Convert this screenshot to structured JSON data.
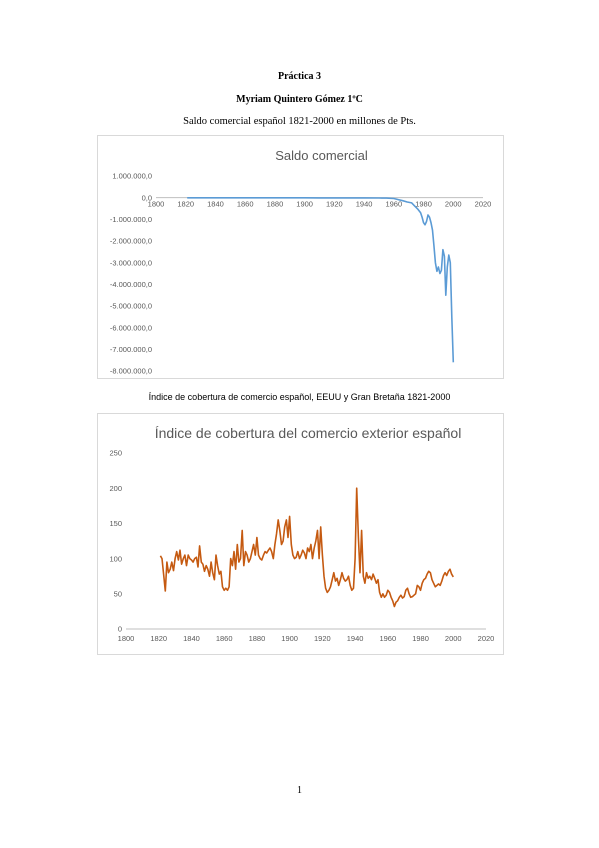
{
  "document": {
    "heading": "Práctica 3",
    "author": "Myriam Quintero Gómez 1ºC",
    "subtitle": "Saldo comercial español 1821-2000 en millones de Pts.",
    "caption2": "Índice de cobertura de comercio español, EEUU y Gran Bretaña 1821-2000",
    "page_number": "1"
  },
  "colors": {
    "saldo_line": "#5b9bd5",
    "cobertura_line": "#c55a11",
    "axis": "#bfbfbf",
    "text": "#595959"
  },
  "chart_data": [
    {
      "type": "line",
      "title": "Saldo comercial",
      "xlabel": "",
      "ylabel": "",
      "xlim": [
        1800,
        2020
      ],
      "ylim": [
        -8000000,
        1000000
      ],
      "x_ticks": [
        1800,
        1820,
        1840,
        1860,
        1880,
        1900,
        1920,
        1940,
        1960,
        1980,
        2000,
        2020
      ],
      "x_tick_labels": [
        "1800",
        "1820",
        "1840",
        "1860",
        "1880",
        "1900",
        "1920",
        "1940",
        "1960",
        "1980",
        "2000",
        "2020"
      ],
      "y_ticks": [
        1000000,
        0,
        -1000000,
        -2000000,
        -3000000,
        -4000000,
        -5000000,
        -6000000,
        -7000000,
        -8000000
      ],
      "y_tick_labels": [
        "1.000.000,0",
        "0,0",
        "-1.000.000,0",
        "-2.000.000,0",
        "-3.000.000,0",
        "-4.000.000,0",
        "-5.000.000,0",
        "-6.000.000,0",
        "-7.000.000,0",
        "-8.000.000,0"
      ],
      "grid": false,
      "series": [
        {
          "x": [
            1821,
            1830,
            1840,
            1850,
            1860,
            1870,
            1880,
            1890,
            1900,
            1910,
            1920,
            1930,
            1940,
            1950,
            1955,
            1960,
            1963,
            1966,
            1969,
            1972,
            1974,
            1976,
            1978,
            1979,
            1980,
            1981,
            1982,
            1983,
            1984,
            1985,
            1986,
            1987,
            1988,
            1989,
            1990,
            1991,
            1992,
            1993,
            1994,
            1995,
            1996,
            1997,
            1998,
            1999,
            2000
          ],
          "values": [
            -5000,
            -5000,
            -5000,
            -5000,
            -6000,
            -6000,
            -7000,
            -8000,
            -8000,
            -9000,
            -10000,
            -12000,
            -10000,
            -15000,
            -20000,
            -40000,
            -90000,
            -140000,
            -200000,
            -240000,
            -380000,
            -520000,
            -700000,
            -900000,
            -1150000,
            -1250000,
            -1100000,
            -800000,
            -900000,
            -1150000,
            -1500000,
            -2200000,
            -3000000,
            -3400000,
            -3200000,
            -3500000,
            -3350000,
            -2400000,
            -2700000,
            -4500000,
            -3200000,
            -2650000,
            -3000000,
            -5500000,
            -7600000
          ]
        }
      ]
    },
    {
      "type": "line",
      "title": "Índice de cobertura del comercio exterior español",
      "xlabel": "",
      "ylabel": "",
      "xlim": [
        1800,
        2020
      ],
      "ylim": [
        0,
        250
      ],
      "x_ticks": [
        1800,
        1820,
        1840,
        1860,
        1880,
        1900,
        1920,
        1940,
        1960,
        1980,
        2000,
        2020
      ],
      "x_tick_labels": [
        "1800",
        "1820",
        "1840",
        "1860",
        "1880",
        "1900",
        "1920",
        "1940",
        "1960",
        "1980",
        "2000",
        "2020"
      ],
      "y_ticks": [
        0,
        50,
        100,
        150,
        200,
        250
      ],
      "y_tick_labels": [
        "0",
        "50",
        "100",
        "150",
        "200",
        "250"
      ],
      "grid": false,
      "series": [
        {
          "x": [
            1821,
            1822,
            1823,
            1824,
            1825,
            1826,
            1827,
            1828,
            1829,
            1830,
            1831,
            1832,
            1833,
            1834,
            1835,
            1836,
            1837,
            1838,
            1839,
            1840,
            1841,
            1842,
            1843,
            1844,
            1845,
            1846,
            1847,
            1848,
            1849,
            1850,
            1851,
            1852,
            1853,
            1854,
            1855,
            1856,
            1857,
            1858,
            1859,
            1860,
            1861,
            1862,
            1863,
            1864,
            1865,
            1866,
            1867,
            1868,
            1869,
            1870,
            1871,
            1872,
            1873,
            1874,
            1875,
            1876,
            1877,
            1878,
            1879,
            1880,
            1881,
            1882,
            1883,
            1884,
            1885,
            1886,
            1887,
            1888,
            1889,
            1890,
            1891,
            1892,
            1893,
            1894,
            1895,
            1896,
            1897,
            1898,
            1899,
            1900,
            1901,
            1902,
            1903,
            1904,
            1905,
            1906,
            1907,
            1908,
            1909,
            1910,
            1911,
            1912,
            1913,
            1914,
            1915,
            1916,
            1917,
            1918,
            1919,
            1920,
            1921,
            1922,
            1923,
            1924,
            1925,
            1926,
            1927,
            1928,
            1929,
            1930,
            1931,
            1932,
            1933,
            1934,
            1935,
            1936,
            1937,
            1938,
            1939,
            1940,
            1941,
            1942,
            1943,
            1944,
            1945,
            1946,
            1947,
            1948,
            1949,
            1950,
            1951,
            1952,
            1953,
            1954,
            1955,
            1956,
            1957,
            1958,
            1959,
            1960,
            1961,
            1962,
            1963,
            1964,
            1965,
            1966,
            1967,
            1968,
            1969,
            1970,
            1971,
            1972,
            1973,
            1974,
            1975,
            1976,
            1977,
            1978,
            1979,
            1980,
            1981,
            1982,
            1983,
            1984,
            1985,
            1986,
            1987,
            1988,
            1989,
            1990,
            1991,
            1992,
            1993,
            1994,
            1995,
            1996,
            1997,
            1998,
            1999,
            2000
          ],
          "values": [
            104,
            100,
            78,
            54,
            95,
            80,
            85,
            95,
            83,
            100,
            110,
            98,
            112,
            92,
            100,
            105,
            90,
            105,
            100,
            98,
            95,
            100,
            102,
            88,
            118,
            95,
            92,
            82,
            90,
            85,
            75,
            95,
            80,
            70,
            105,
            90,
            78,
            82,
            60,
            55,
            58,
            55,
            60,
            100,
            90,
            110,
            85,
            120,
            95,
            100,
            140,
            90,
            110,
            105,
            95,
            100,
            110,
            120,
            105,
            130,
            105,
            100,
            98,
            105,
            110,
            108,
            112,
            115,
            110,
            100,
            120,
            135,
            155,
            140,
            120,
            125,
            145,
            155,
            130,
            160,
            120,
            105,
            100,
            102,
            110,
            100,
            105,
            112,
            108,
            100,
            115,
            110,
            120,
            100,
            115,
            125,
            140,
            100,
            145,
            105,
            75,
            58,
            52,
            55,
            60,
            70,
            80,
            68,
            72,
            62,
            70,
            80,
            72,
            68,
            70,
            75,
            62,
            55,
            58,
            100,
            200,
            130,
            80,
            140,
            75,
            65,
            80,
            72,
            75,
            70,
            78,
            72,
            65,
            70,
            52,
            45,
            50,
            45,
            48,
            55,
            52,
            45,
            40,
            32,
            38,
            40,
            45,
            48,
            44,
            46,
            55,
            58,
            50,
            45,
            46,
            48,
            50,
            62,
            60,
            55,
            65,
            70,
            72,
            78,
            82,
            80,
            70,
            65,
            60,
            62,
            64,
            62,
            68,
            76,
            80,
            76,
            82,
            85,
            78,
            74
          ]
        }
      ]
    }
  ]
}
